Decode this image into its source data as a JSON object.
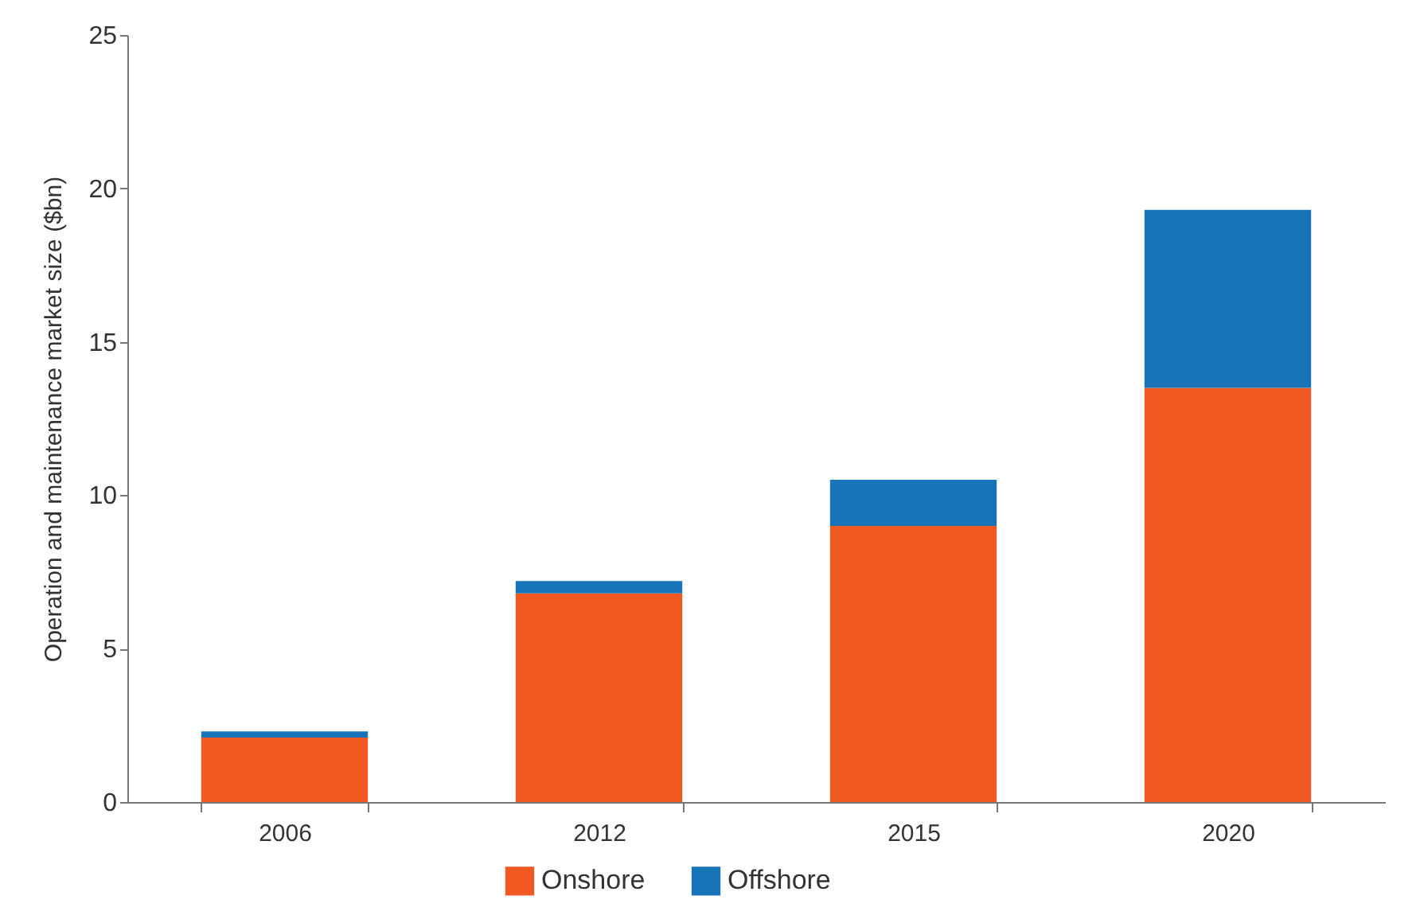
{
  "chart_data": {
    "type": "bar",
    "stacked": true,
    "ylabel": "Operation and maintenance market size ($bn)",
    "categories": [
      "2006",
      "2012",
      "2015",
      "2020"
    ],
    "series": [
      {
        "name": "Onshore",
        "color": "#f05a22",
        "values": [
          2.1,
          6.8,
          9.0,
          13.5
        ]
      },
      {
        "name": "Offshore",
        "color": "#1874b8",
        "values": [
          0.2,
          0.4,
          1.5,
          5.8
        ]
      }
    ],
    "ylim": [
      0,
      25
    ],
    "yticks": [
      0,
      5,
      10,
      15,
      20,
      25
    ],
    "grid": false,
    "legend": "bottom"
  }
}
